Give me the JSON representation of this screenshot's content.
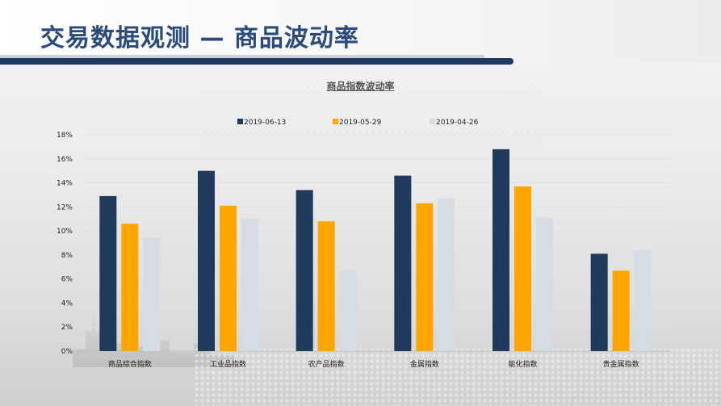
{
  "page": {
    "title": "交易数据观测 — 商品波动率"
  },
  "chart_data": {
    "type": "bar",
    "title": "商品指数波动率",
    "categories": [
      "商品综合指数",
      "工业品指数",
      "农产品指数",
      "金属指数",
      "能化指数",
      "贵金属指数"
    ],
    "series": [
      {
        "name": "2019-06-13",
        "color": "#1f3a5c",
        "values": [
          12.9,
          15.0,
          13.4,
          14.6,
          16.8,
          8.1
        ]
      },
      {
        "name": "2019-05-29",
        "color": "#ffa500",
        "values": [
          10.6,
          12.1,
          10.8,
          12.3,
          13.7,
          6.7
        ]
      },
      {
        "name": "2019-04-26",
        "color": "#d6dce4",
        "values": [
          9.4,
          11.0,
          6.7,
          12.7,
          11.1,
          8.4
        ]
      }
    ],
    "ylim": [
      0,
      18
    ],
    "yticks": [
      "0%",
      "2%",
      "4%",
      "6%",
      "8%",
      "10%",
      "12%",
      "14%",
      "16%",
      "18%"
    ],
    "ytick_values": [
      0,
      2,
      4,
      6,
      8,
      10,
      12,
      14,
      16,
      18
    ],
    "grid": true,
    "legend_position": "top"
  }
}
